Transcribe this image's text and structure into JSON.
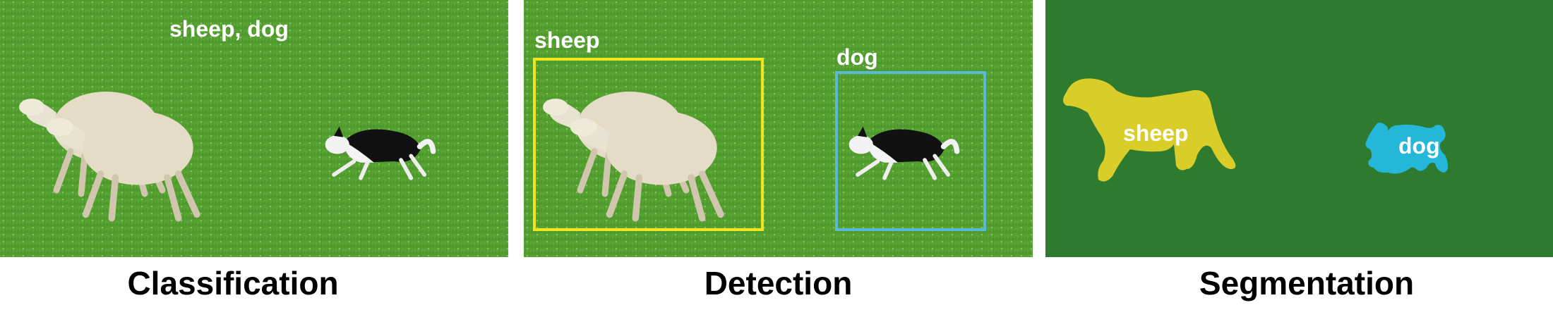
{
  "panels": {
    "classification": {
      "title": "Classification",
      "caption": "sheep, dog"
    },
    "detection": {
      "title": "Detection",
      "boxes": [
        {
          "label": "sheep",
          "color": "#f2e51a"
        },
        {
          "label": "dog",
          "color": "#5ab8d8"
        }
      ]
    },
    "segmentation": {
      "title": "Segmentation",
      "masks": [
        {
          "label": "sheep",
          "color": "#d9cd2a"
        },
        {
          "label": "dog",
          "color": "#25b7d9"
        }
      ],
      "background_color": "#2e7a2f"
    }
  },
  "colors": {
    "grass_light": "#5fa83a",
    "grass_dark": "#3f7d22"
  }
}
